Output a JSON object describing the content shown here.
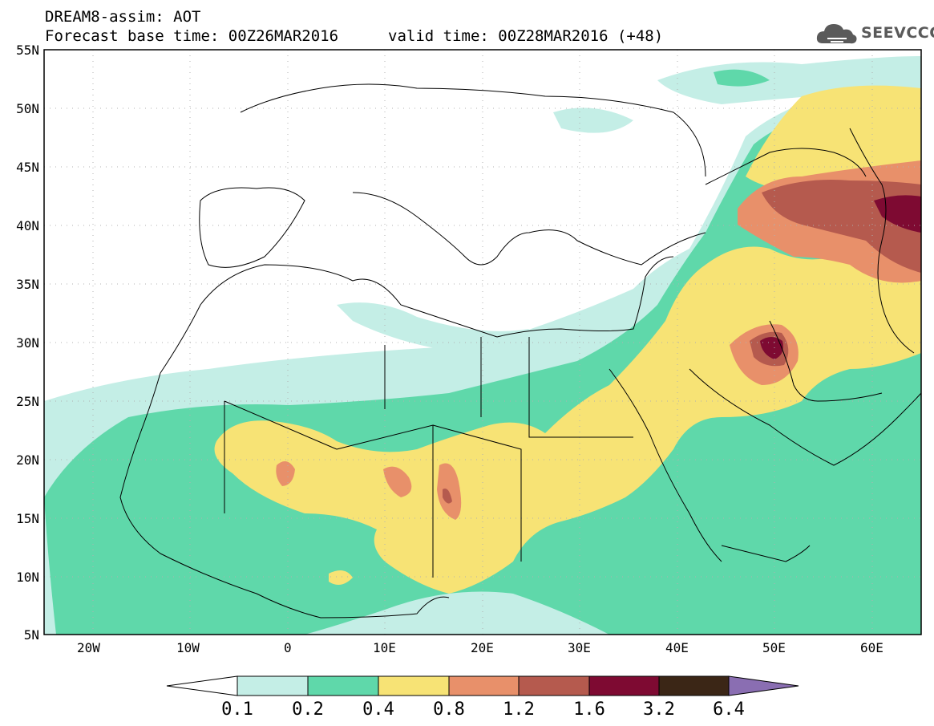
{
  "header": {
    "line1": "DREAM8-assim: AOT",
    "line2": "Forecast base time: 00Z26MAR2016",
    "valid": "valid time: 00Z28MAR2016 (+48)"
  },
  "logo": {
    "text": "SEEVCCC",
    "icon": "cloud-icon"
  },
  "map": {
    "lat_labels": [
      "55N",
      "50N",
      "45N",
      "40N",
      "35N",
      "30N",
      "25N",
      "20N",
      "15N",
      "10N",
      "5N"
    ],
    "lon_labels": [
      "20W",
      "10W",
      "0",
      "10E",
      "20E",
      "30E",
      "40E",
      "50E",
      "60E"
    ],
    "lat_range": [
      5,
      55
    ],
    "lon_range": [
      -25,
      65
    ],
    "grid": "dotted"
  },
  "colorbar": {
    "levels": [
      "0.1",
      "0.2",
      "0.4",
      "0.8",
      "1.2",
      "1.6",
      "3.2",
      "6.4"
    ],
    "colors": [
      "#ffffff",
      "#c4eee6",
      "#5fd8aa",
      "#f7e375",
      "#e8906a",
      "#b55a4e",
      "#7e0a32",
      "#3b2616",
      "#8a6eb2"
    ]
  }
}
